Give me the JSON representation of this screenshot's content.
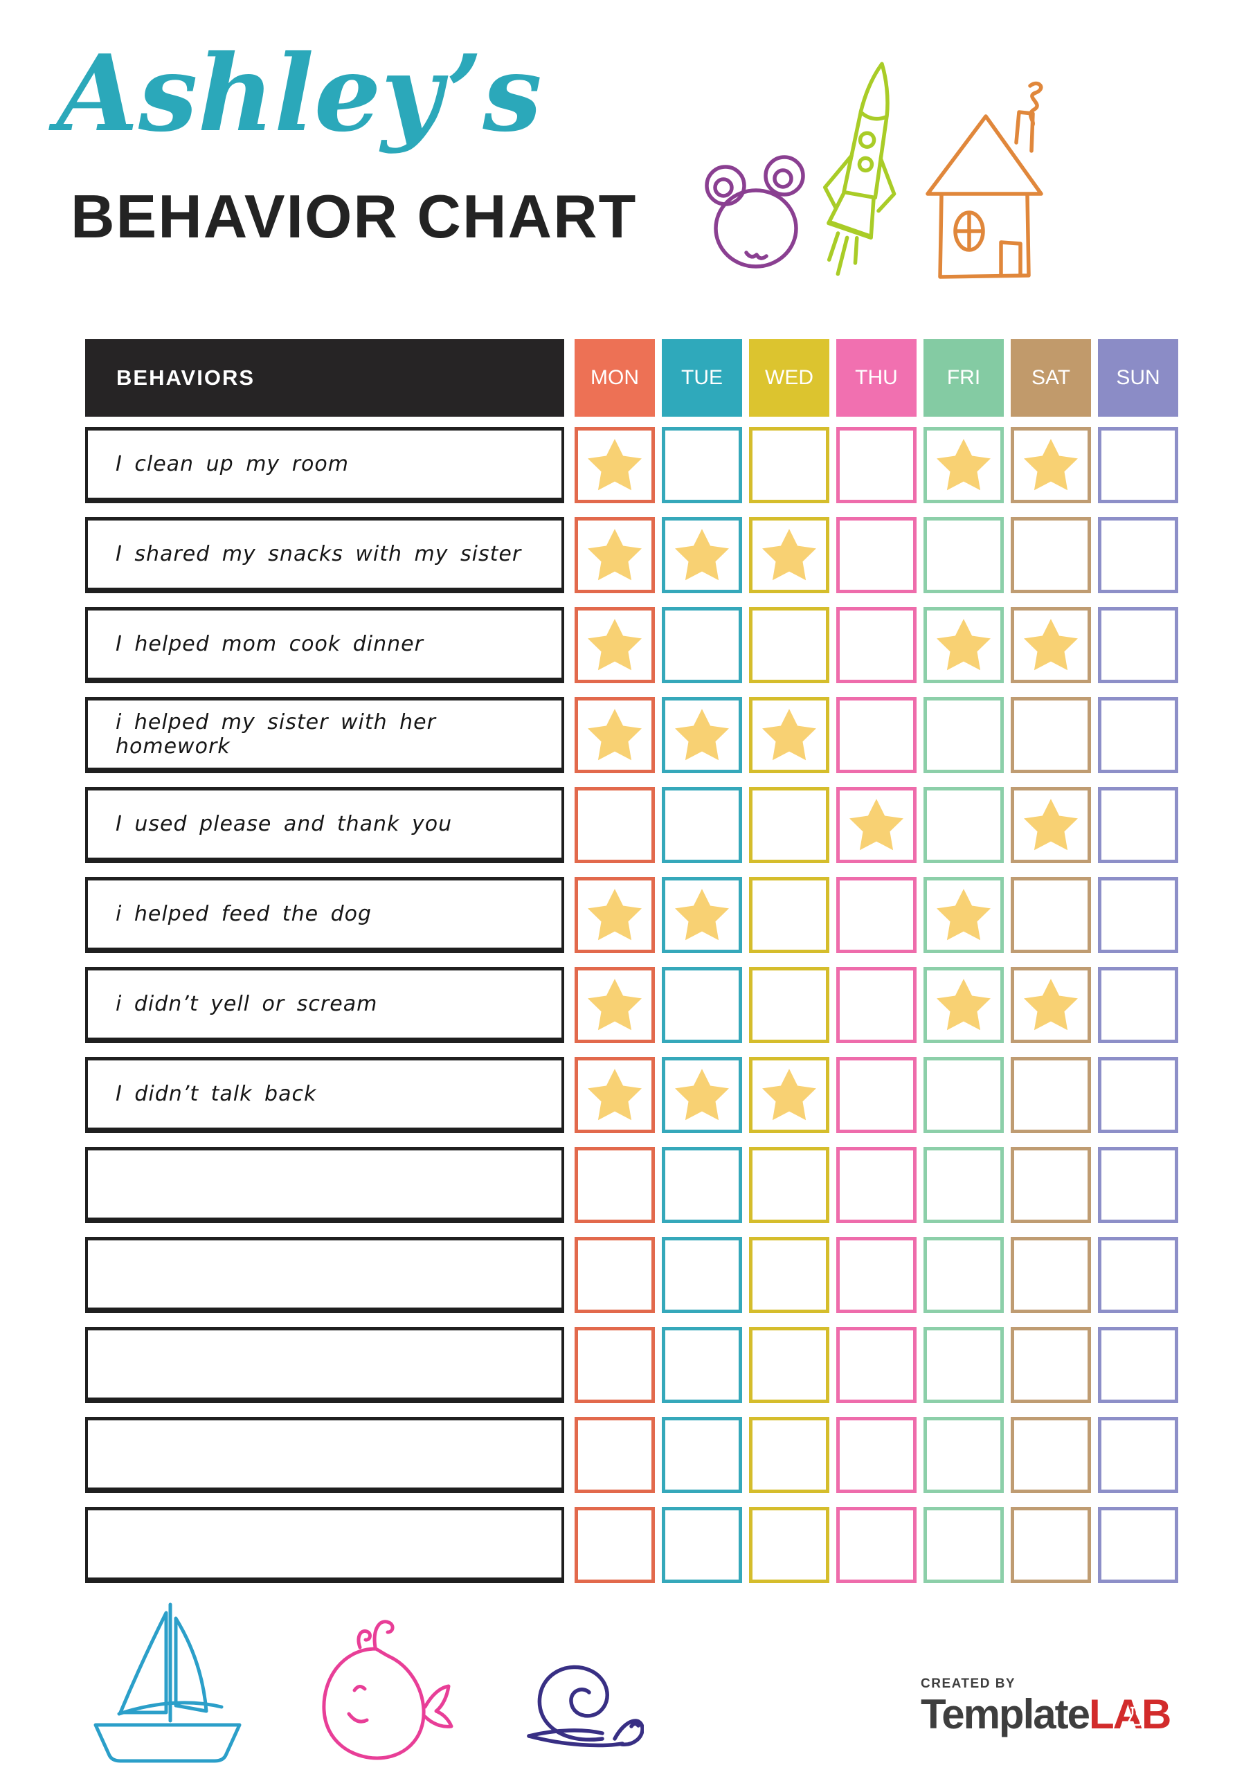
{
  "page": {
    "script_title": "Ashley’s",
    "main_title": "BEHAVIOR CHART"
  },
  "table": {
    "behaviors_header": "BEHAVIORS",
    "days": [
      {
        "label": "MON",
        "header_color": "#ed7155",
        "border_color": "#e2694c"
      },
      {
        "label": "TUE",
        "header_color": "#2fa9bb",
        "border_color": "#35a8ba"
      },
      {
        "label": "WED",
        "header_color": "#dcc42f",
        "border_color": "#d5bd2c"
      },
      {
        "label": "THU",
        "header_color": "#f170b0",
        "border_color": "#ee6cab"
      },
      {
        "label": "FRI",
        "header_color": "#84cba3",
        "border_color": "#8ccfa9"
      },
      {
        "label": "SAT",
        "header_color": "#c19a6b",
        "border_color": "#bf9c72"
      },
      {
        "label": "SUN",
        "header_color": "#8b8cc6",
        "border_color": "#8d8fc8"
      }
    ],
    "rows": [
      {
        "label": "I clean up my room",
        "stars": [
          "MON",
          "FRI",
          "SAT"
        ]
      },
      {
        "label": "I shared my snacks with my sister",
        "stars": [
          "MON",
          "TUE",
          "WED"
        ]
      },
      {
        "label": "I helped mom cook dinner",
        "stars": [
          "MON",
          "FRI",
          "SAT"
        ]
      },
      {
        "label": "i helped my sister with her homework",
        "stars": [
          "MON",
          "TUE",
          "WED"
        ]
      },
      {
        "label": "I used please and thank you",
        "stars": [
          "THU",
          "SAT"
        ]
      },
      {
        "label": "i helped feed the dog",
        "stars": [
          "MON",
          "TUE",
          "FRI"
        ]
      },
      {
        "label": "i didn’t yell or scream",
        "stars": [
          "MON",
          "FRI",
          "SAT"
        ]
      },
      {
        "label": "I didn’t talk back",
        "stars": [
          "MON",
          "TUE",
          "WED"
        ]
      },
      {
        "label": "",
        "stars": []
      },
      {
        "label": "",
        "stars": []
      },
      {
        "label": "",
        "stars": []
      },
      {
        "label": "",
        "stars": []
      },
      {
        "label": "",
        "stars": []
      }
    ]
  },
  "colors": {
    "script_title": "#2ba8ba",
    "main_title": "#232323",
    "behaviors_header_bg": "#262425",
    "row_border": "#1f1f1f",
    "star": "#f8d173",
    "bear": "#8a3f91",
    "rocket": "#a9cc27",
    "house": "#e0873b",
    "sailboat": "#2b9fc9",
    "whale": "#e83e97",
    "snail": "#382f84",
    "logo_gray": "#3e3e3e",
    "logo_red": "#d22b2b"
  },
  "footer": {
    "created_by": "CREATED BY",
    "brand_name": "Template",
    "brand_suffix": "LAB"
  }
}
